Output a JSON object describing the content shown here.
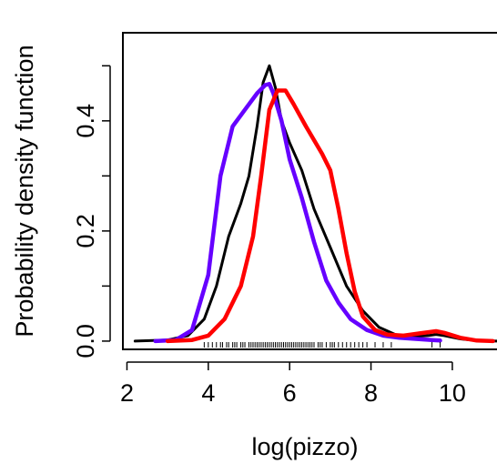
{
  "chart_data": {
    "type": "line",
    "title": "",
    "xlabel": "log(pizzo)",
    "ylabel": "Probability density function",
    "xlim": [
      1.9,
      11.3
    ],
    "ylim": [
      -0.015,
      0.56
    ],
    "xticks": [
      2,
      4,
      6,
      8,
      10
    ],
    "xtick_labels": [
      "2",
      "4",
      "6",
      "8",
      "10"
    ],
    "yticks": [
      0.0,
      0.1,
      0.2,
      0.3,
      0.4,
      0.5
    ],
    "ytick_labels": [
      "0.0",
      "",
      "0.2",
      "",
      "0.4",
      ""
    ],
    "grid": false,
    "legend": "none",
    "series": [
      {
        "color": "#000000",
        "x": [
          2.2,
          3.0,
          3.5,
          3.9,
          4.2,
          4.5,
          4.8,
          5.0,
          5.2,
          5.35,
          5.5,
          5.65,
          5.8,
          6.0,
          6.3,
          6.6,
          7.0,
          7.4,
          7.8,
          8.2,
          8.6,
          9.0,
          9.4,
          9.6,
          9.8,
          10.2,
          10.6,
          11.0,
          11.3
        ],
        "y": [
          0.0,
          0.002,
          0.01,
          0.04,
          0.1,
          0.19,
          0.25,
          0.3,
          0.39,
          0.47,
          0.5,
          0.46,
          0.4,
          0.36,
          0.31,
          0.24,
          0.17,
          0.1,
          0.055,
          0.025,
          0.012,
          0.008,
          0.01,
          0.012,
          0.01,
          0.004,
          0.001,
          0.0,
          0.0
        ]
      },
      {
        "color": "#6600ff",
        "x": [
          2.7,
          3.2,
          3.6,
          4.0,
          4.3,
          4.6,
          4.9,
          5.2,
          5.4,
          5.5,
          5.6,
          5.8,
          6.0,
          6.3,
          6.6,
          6.9,
          7.2,
          7.5,
          7.9,
          8.3,
          8.7,
          9.1,
          9.5,
          9.7
        ],
        "y": [
          0.0,
          0.002,
          0.02,
          0.12,
          0.3,
          0.39,
          0.42,
          0.45,
          0.465,
          0.467,
          0.45,
          0.4,
          0.33,
          0.26,
          0.18,
          0.11,
          0.07,
          0.04,
          0.02,
          0.01,
          0.006,
          0.004,
          0.002,
          0.001
        ]
      },
      {
        "color": "#ff0000",
        "x": [
          3.0,
          3.6,
          4.0,
          4.4,
          4.8,
          5.1,
          5.3,
          5.5,
          5.7,
          5.9,
          6.1,
          6.4,
          6.8,
          7.0,
          7.2,
          7.4,
          7.6,
          7.8,
          8.1,
          8.4,
          8.8,
          9.2,
          9.6,
          9.8,
          10.2,
          10.6,
          11.0
        ],
        "y": [
          0.0,
          0.002,
          0.01,
          0.04,
          0.1,
          0.19,
          0.3,
          0.42,
          0.455,
          0.455,
          0.43,
          0.39,
          0.34,
          0.31,
          0.24,
          0.16,
          0.09,
          0.045,
          0.02,
          0.012,
          0.01,
          0.014,
          0.018,
          0.015,
          0.006,
          0.001,
          0.0
        ]
      }
    ],
    "rug": [
      3.9,
      4.0,
      4.1,
      4.2,
      4.3,
      4.35,
      4.45,
      4.5,
      4.6,
      4.65,
      4.7,
      4.8,
      4.85,
      4.9,
      5.0,
      5.05,
      5.1,
      5.15,
      5.2,
      5.25,
      5.3,
      5.35,
      5.4,
      5.45,
      5.5,
      5.55,
      5.6,
      5.65,
      5.7,
      5.75,
      5.8,
      5.85,
      5.9,
      5.95,
      6.0,
      6.05,
      6.1,
      6.15,
      6.2,
      6.25,
      6.3,
      6.35,
      6.4,
      6.45,
      6.5,
      6.55,
      6.6,
      6.7,
      6.75,
      6.8,
      6.9,
      7.0,
      7.05,
      7.1,
      7.2,
      7.3,
      7.4,
      7.5,
      7.6,
      7.7,
      7.8,
      7.9,
      8.1,
      8.3,
      8.5,
      9.5,
      9.7
    ]
  }
}
